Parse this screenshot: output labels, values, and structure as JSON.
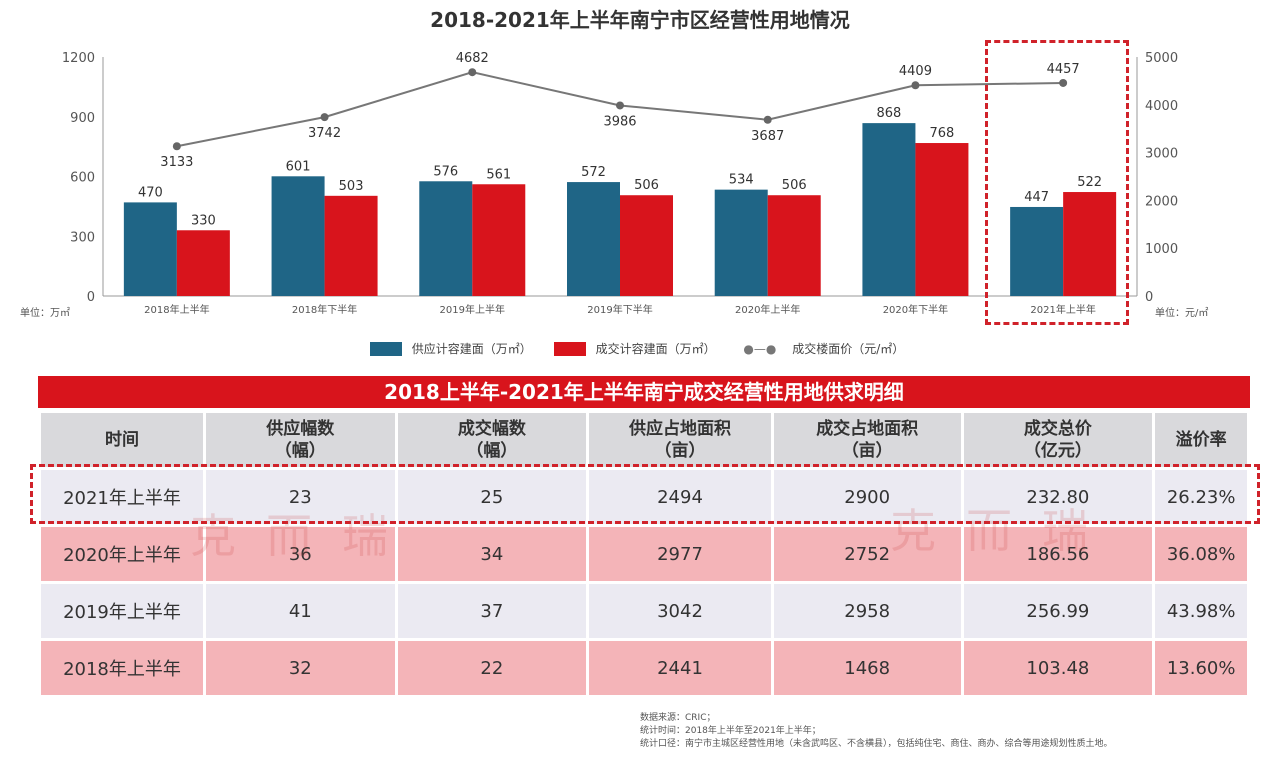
{
  "chart_data": {
    "type": "bar",
    "title": "2018-2021年上半年南宁市区经营性用地情况",
    "categories": [
      "2018年上半年",
      "2018年下半年",
      "2019年上半年",
      "2019年下半年",
      "2020年上半年",
      "2020年下半年",
      "2021年上半年"
    ],
    "series": [
      {
        "name": "供应计容建面（万㎡）",
        "type": "bar",
        "axis": "left",
        "color": "#1f6586",
        "values": [
          470,
          601,
          576,
          572,
          534,
          868,
          447
        ]
      },
      {
        "name": "成交计容建面（万㎡）",
        "type": "bar",
        "axis": "left",
        "color": "#d8141c",
        "values": [
          330,
          503,
          561,
          506,
          506,
          768,
          522
        ]
      },
      {
        "name": "成交楼面价（元/㎡）",
        "type": "line",
        "axis": "right",
        "color": "#777777",
        "values": [
          3133,
          3742,
          4682,
          3986,
          3687,
          4409,
          4457
        ]
      }
    ],
    "left_axis": {
      "label": "单位：万㎡",
      "ylim": [
        0,
        1200
      ],
      "ticks": [
        0,
        300,
        600,
        900,
        1200
      ]
    },
    "right_axis": {
      "label": "单位：元/㎡",
      "ylim": [
        0,
        5000
      ],
      "ticks": [
        0,
        1000,
        2000,
        3000,
        4000,
        5000
      ]
    },
    "legend": "bottom",
    "grid": false
  },
  "table": {
    "title": "2018上半年-2021年上半年南宁成交经营性用地供求明细",
    "headers": [
      [
        "时间"
      ],
      [
        "供应幅数",
        "（幅）"
      ],
      [
        "成交幅数",
        "（幅）"
      ],
      [
        "供应占地面积",
        "（亩）"
      ],
      [
        "成交占地面积",
        "（亩）"
      ],
      [
        "成交总价",
        "（亿元）"
      ],
      [
        "溢价率"
      ]
    ],
    "rows": [
      [
        "2021年上半年",
        "23",
        "25",
        "2494",
        "2900",
        "232.80",
        "26.23%"
      ],
      [
        "2020年上半年",
        "36",
        "34",
        "2977",
        "2752",
        "186.56",
        "36.08%"
      ],
      [
        "2019年上半年",
        "41",
        "37",
        "3042",
        "2958",
        "256.99",
        "43.98%"
      ],
      [
        "2018年上半年",
        "32",
        "22",
        "2441",
        "1468",
        "103.48",
        "13.60%"
      ]
    ]
  },
  "footnotes": [
    "数据来源：CRIC；",
    "统计时间：2018年上半年至2021年上半年；",
    "统计口径：南宁市主城区经营性用地（未含武鸣区、不含横县），包括纯住宅、商住、商办、综合等用途规划性质土地。"
  ],
  "watermark": "克而瑞"
}
